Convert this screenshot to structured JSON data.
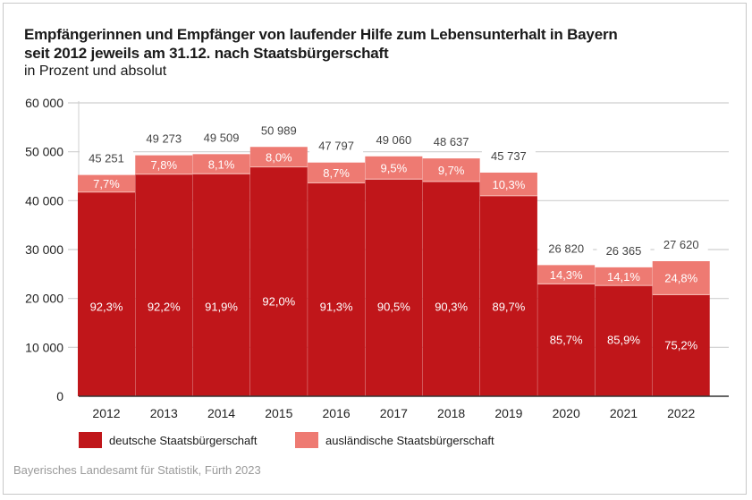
{
  "header": {
    "title_line1": "Empfängerinnen und Empfänger von laufender Hilfe zum Lebensunterhalt in Bayern",
    "title_line2": "seit 2012 jeweils am 31.12. nach Staatsbürgerschaft",
    "subtitle": "in Prozent und absolut"
  },
  "source": "Bayerisches Landesamt für Statistik, Fürth 2023",
  "colors": {
    "deutsche": "#c0161a",
    "auslaendische": "#ee7a72",
    "grid": "#cfcfcf",
    "axis": "#333333",
    "total_label": "#444444"
  },
  "legend": [
    {
      "label": "deutsche Staatsbürgerschaft",
      "key": "deutsche"
    },
    {
      "label": "ausländische Staatsbürgerschaft",
      "key": "auslaendische"
    }
  ],
  "chart_data": {
    "type": "bar",
    "stacked": true,
    "title": "Empfängerinnen und Empfänger von laufender Hilfe zum Lebensunterhalt in Bayern seit 2012 jeweils am 31.12. nach Staatsbürgerschaft",
    "subtitle": "in Prozent und absolut",
    "xlabel": "",
    "ylabel": "",
    "ylim": [
      0,
      60000
    ],
    "yticks": [
      0,
      10000,
      20000,
      30000,
      40000,
      50000,
      60000
    ],
    "ytick_labels": [
      "0",
      "10 000",
      "20 000",
      "30 000",
      "40 000",
      "50 000",
      "60 000"
    ],
    "grid": true,
    "legend_position": "bottom-left",
    "categories": [
      "2012",
      "2013",
      "2014",
      "2015",
      "2016",
      "2017",
      "2018",
      "2019",
      "2020",
      "2021",
      "2022"
    ],
    "totals": [
      45251,
      49273,
      49509,
      50989,
      47797,
      49060,
      48637,
      45737,
      26820,
      26365,
      27620
    ],
    "total_labels": [
      "45 251",
      "49 273",
      "49 509",
      "50 989",
      "47 797",
      "49 060",
      "48 637",
      "45 737",
      "26 820",
      "26 365",
      "27 620"
    ],
    "series": [
      {
        "name": "deutsche Staatsbürgerschaft",
        "percent": [
          92.3,
          92.2,
          91.9,
          92.0,
          91.3,
          90.5,
          90.3,
          89.7,
          85.7,
          85.9,
          75.2
        ],
        "percent_labels": [
          "92,3%",
          "92,2%",
          "91,9%",
          "92,0%",
          "91,3%",
          "90,5%",
          "90,3%",
          "89,7%",
          "85,7%",
          "85,9%",
          "75,2%"
        ]
      },
      {
        "name": "ausländische Staatsbürgerschaft",
        "percent": [
          7.7,
          7.8,
          8.1,
          8.0,
          8.7,
          9.5,
          9.7,
          10.3,
          14.3,
          14.1,
          24.8
        ],
        "percent_labels": [
          "7,7%",
          "7,8%",
          "8,1%",
          "8,0%",
          "8,7%",
          "9,5%",
          "9,7%",
          "10,3%",
          "14,3%",
          "14,1%",
          "24,8%"
        ]
      }
    ]
  }
}
